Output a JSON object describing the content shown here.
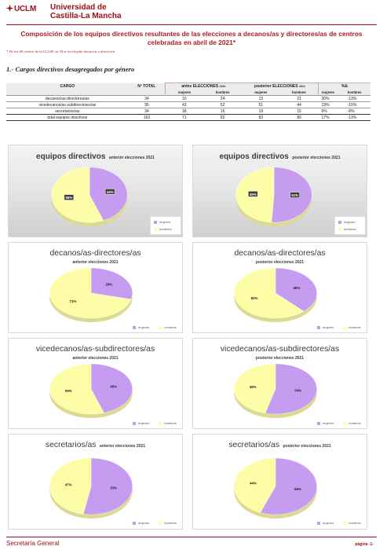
{
  "header": {
    "logo_text": "UCLM",
    "university_line1": "Universidad de",
    "university_line2": "Castilla-La Mancha"
  },
  "title": "Composición de los equipos directivos resultantes de las elecciones a decanos/as y directores/as de centros celebradas en abril de 2021*",
  "note": "* De los 40 centros de la UCLM, en 34 se ha elegido decano/a o director/a.",
  "section_heading": "1.- Cargos directivos desagregados por género",
  "table": {
    "headers": {
      "cargo": "CARGO",
      "total": "Nº TOTAL",
      "antes": "antes ELECCIONES",
      "antes_year": "2021",
      "posterior": "posterior ELECCIONES",
      "posterior_year": "2021",
      "delta": "%Δ",
      "mujeres": "mujeres",
      "hombres": "hombres"
    },
    "rows": [
      {
        "cargo": "decanos/as-directores/as",
        "total": "34",
        "antes_m": "10",
        "antes_h": "24",
        "post_m": "13",
        "post_h": "21",
        "pct_m": "30%",
        "pct_h": "-13%"
      },
      {
        "cargo": "vicedecanos/as-subdirectores/as",
        "total": "95",
        "antes_m": "43",
        "antes_h": "52",
        "post_m": "51",
        "post_h": "44",
        "pct_m": "19%",
        "pct_h": "-15%"
      },
      {
        "cargo": "secretarios/as",
        "total": "34",
        "antes_m": "18",
        "antes_h": "16",
        "post_m": "19",
        "post_h": "15",
        "pct_m": "6%",
        "pct_h": "-6%"
      },
      {
        "cargo": "total equipos directivos",
        "total": "163",
        "antes_m": "71",
        "antes_h": "92",
        "post_m": "83",
        "post_h": "80",
        "pct_m": "17%",
        "pct_h": "-13%"
      }
    ]
  },
  "charts": [
    {
      "main": "equipos directivos",
      "sub": "anterior elecciones 2021"
    },
    {
      "main": "equipos directivos",
      "sub": "posterior elecciones 2021"
    },
    {
      "main": "decanos/as-directores/as",
      "sub": "anterior elecciones 2021"
    },
    {
      "main": "decanos/as-directores/as",
      "sub": "posterior elecciones 2021"
    },
    {
      "main": "vicedecanos/as-subdirectores/as",
      "sub": "anterior elecciones 2021"
    },
    {
      "main": "vicedecanos/as-subdirectores/as",
      "sub": "posterior elecciones 2021"
    },
    {
      "main": "secretarios/as",
      "sub": "anterior elecciones 2021"
    },
    {
      "main": "secretarios/as",
      "sub": "posterior elecciones 2021"
    }
  ],
  "legend": {
    "mujeres": "mujeres",
    "hombres": "hombres"
  },
  "colors": {
    "mujeres": "#c69cf0",
    "hombres": "#fdfda8",
    "brand": "#a01018"
  },
  "chart_data": [
    {
      "type": "pie",
      "categories": [
        "mujeres",
        "hombres"
      ],
      "values": [
        44,
        56
      ],
      "labels": [
        "44%",
        "56%"
      ]
    },
    {
      "type": "pie",
      "categories": [
        "mujeres",
        "hombres"
      ],
      "values": [
        51,
        49
      ],
      "labels": [
        "51%",
        "49%"
      ]
    },
    {
      "type": "pie",
      "categories": [
        "mujeres",
        "hombres"
      ],
      "values": [
        29,
        71
      ],
      "labels": [
        "29%",
        "71%"
      ]
    },
    {
      "type": "pie",
      "categories": [
        "mujeres",
        "hombres"
      ],
      "values": [
        38,
        62
      ],
      "labels": [
        "38%",
        "62%"
      ]
    },
    {
      "type": "pie",
      "categories": [
        "mujeres",
        "hombres"
      ],
      "values": [
        45,
        55
      ],
      "labels": [
        "45%",
        "55%"
      ]
    },
    {
      "type": "pie",
      "categories": [
        "mujeres",
        "hombres"
      ],
      "values": [
        54,
        46
      ],
      "labels": [
        "54%",
        "46%"
      ]
    },
    {
      "type": "pie",
      "categories": [
        "mujeres",
        "hombres"
      ],
      "values": [
        53,
        47
      ],
      "labels": [
        "53%",
        "47%"
      ]
    },
    {
      "type": "pie",
      "categories": [
        "mujeres",
        "hombres"
      ],
      "values": [
        56,
        44
      ],
      "labels": [
        "56%",
        "44%"
      ]
    }
  ],
  "footer": {
    "left": "Secretaría General",
    "right": "página -1-"
  }
}
